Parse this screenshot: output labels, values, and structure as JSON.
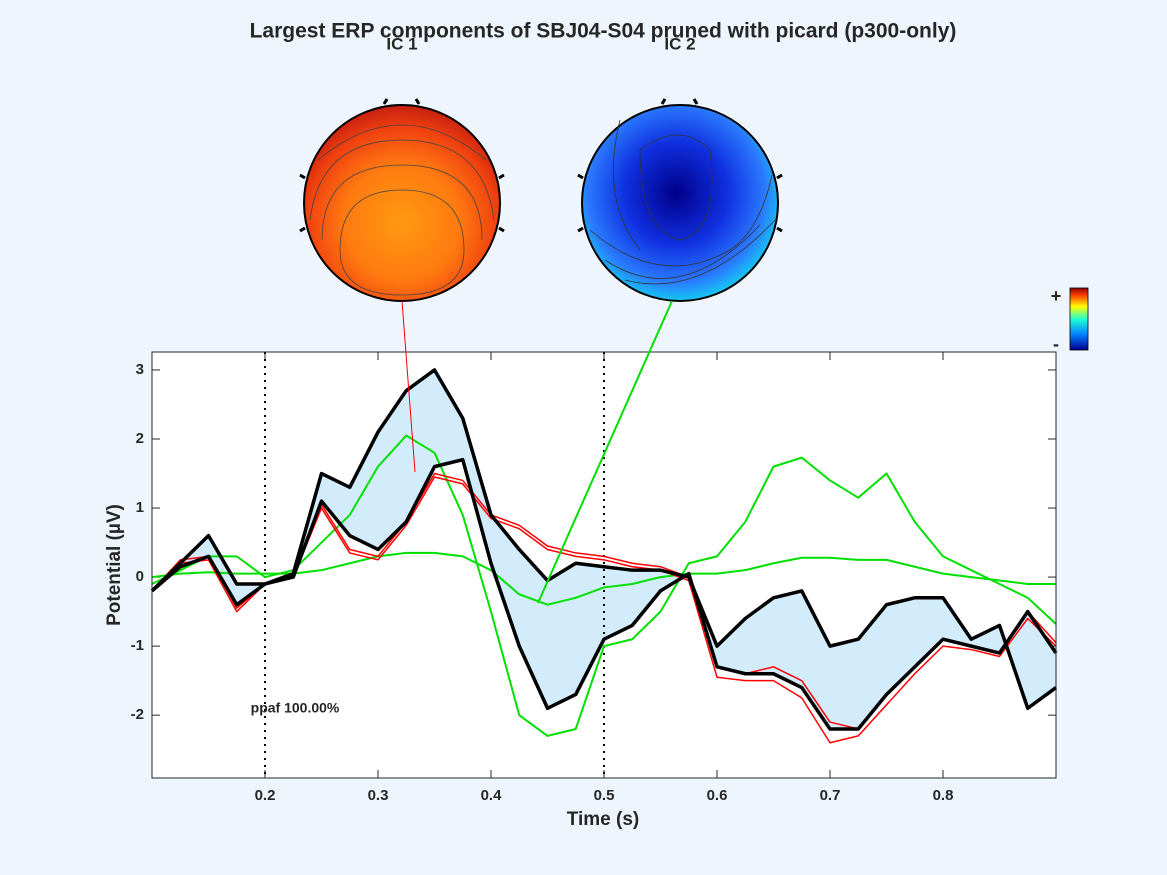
{
  "chart_data": {
    "type": "line",
    "title": "Largest ERP components of SBJ04-S04 pruned with picard (p300-only)",
    "xlabel": "Time (s)",
    "ylabel": "Potential (µV)",
    "annotation": "ppaf 100.00%",
    "components": [
      "IC 1",
      "IC 2"
    ],
    "colorbar_labels": [
      "+",
      "-"
    ],
    "xlim": [
      0.1,
      0.9
    ],
    "ylim": [
      -2.91,
      3.26
    ],
    "xticks": [
      0.2,
      0.3,
      0.4,
      0.5,
      0.6,
      0.7,
      0.8
    ],
    "yticks": [
      -2,
      -1,
      0,
      1,
      2,
      3
    ],
    "window": [
      0.2,
      0.5
    ],
    "fill_between": [
      0,
      1
    ],
    "fill_color": "#d3ecfb",
    "x": [
      0.1,
      0.125,
      0.15,
      0.175,
      0.2,
      0.225,
      0.25,
      0.275,
      0.3,
      0.325,
      0.35,
      0.375,
      0.4,
      0.425,
      0.45,
      0.475,
      0.5,
      0.525,
      0.55,
      0.575,
      0.6,
      0.625,
      0.65,
      0.675,
      0.7,
      0.725,
      0.75,
      0.775,
      0.8,
      0.825,
      0.85,
      0.875,
      0.9
    ],
    "series": [
      {
        "color": "#000000",
        "width": 3.5,
        "values": [
          -0.2,
          0.2,
          0.6,
          -0.1,
          -0.1,
          0.05,
          1.5,
          1.3,
          2.1,
          2.7,
          3.0,
          2.3,
          0.9,
          0.4,
          -0.05,
          0.2,
          0.15,
          0.1,
          0.1,
          0.0,
          -1.0,
          -0.6,
          -0.3,
          -0.2,
          -1.0,
          -0.9,
          -0.4,
          -0.3,
          -0.3,
          -0.9,
          -0.7,
          -1.9,
          -1.6
        ]
      },
      {
        "color": "#000000",
        "width": 3.5,
        "values": [
          -0.2,
          0.15,
          0.3,
          -0.4,
          -0.1,
          0.0,
          1.1,
          0.6,
          0.4,
          0.8,
          1.6,
          1.7,
          0.2,
          -1.0,
          -1.9,
          -1.7,
          -0.9,
          -0.7,
          -0.2,
          0.05,
          -1.3,
          -1.4,
          -1.4,
          -1.6,
          -2.2,
          -2.2,
          -1.7,
          -1.3,
          -0.9,
          -1.0,
          -1.1,
          -0.5,
          -1.1
        ]
      },
      {
        "color": "#ff0000",
        "width": 1.5,
        "values": [
          -0.2,
          0.25,
          0.3,
          -0.45,
          -0.1,
          0.0,
          1.05,
          0.4,
          0.3,
          0.8,
          1.5,
          1.4,
          0.9,
          0.75,
          0.45,
          0.35,
          0.3,
          0.2,
          0.15,
          0.0,
          -1.3,
          -1.4,
          -1.3,
          -1.5,
          -2.1,
          -2.2,
          -1.7,
          -1.3,
          -0.9,
          -1.0,
          -1.1,
          -0.5,
          -0.95
        ]
      },
      {
        "color": "#ff0000",
        "width": 1.5,
        "values": [
          -0.2,
          0.2,
          0.25,
          -0.5,
          -0.1,
          0.0,
          1.0,
          0.35,
          0.25,
          0.75,
          1.45,
          1.35,
          0.85,
          0.7,
          0.4,
          0.3,
          0.25,
          0.15,
          0.1,
          -0.05,
          -1.45,
          -1.5,
          -1.5,
          -1.75,
          -2.4,
          -2.3,
          -1.85,
          -1.4,
          -1.0,
          -1.05,
          -1.15,
          -0.6,
          -1.0
        ]
      },
      {
        "color": "#00e000",
        "width": 2,
        "values": [
          -0.1,
          0.1,
          0.3,
          0.3,
          0.0,
          0.1,
          0.5,
          0.9,
          1.6,
          2.05,
          1.8,
          0.9,
          -0.5,
          -2.0,
          -2.3,
          -2.2,
          -1.0,
          -0.9,
          -0.5,
          0.2,
          0.3,
          0.8,
          1.6,
          1.73,
          1.4,
          1.15,
          1.5,
          0.8,
          0.3,
          0.1,
          -0.1,
          -0.3,
          -0.68
        ]
      },
      {
        "color": "#00e000",
        "width": 2,
        "values": [
          0.0,
          0.05,
          0.07,
          0.05,
          0.05,
          0.05,
          0.1,
          0.2,
          0.3,
          0.35,
          0.35,
          0.3,
          0.1,
          -0.25,
          -0.4,
          -0.3,
          -0.15,
          -0.1,
          0.0,
          0.05,
          0.05,
          0.1,
          0.2,
          0.28,
          0.28,
          0.25,
          0.25,
          0.15,
          0.05,
          0.0,
          -0.05,
          -0.1,
          -0.1
        ]
      }
    ]
  }
}
